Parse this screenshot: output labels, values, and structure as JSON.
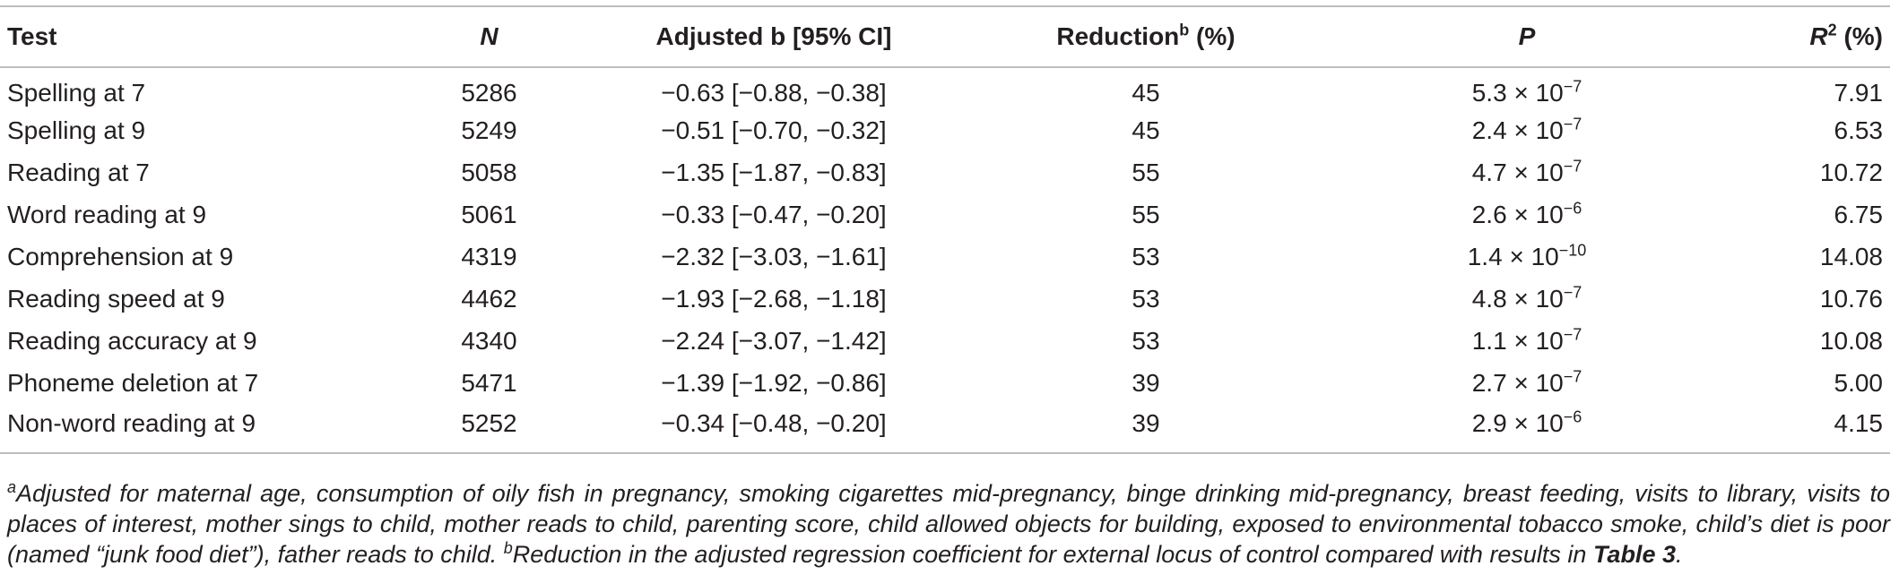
{
  "table": {
    "headers": {
      "test": "Test",
      "n": "N",
      "adjusted_b": "Adjusted b [95% CI]",
      "reduction": "Reduction",
      "reduction_sup": "b",
      "reduction_unit": " (%)",
      "p": "P",
      "r2": "R",
      "r2_sup": "2",
      "r2_unit": " (%)"
    },
    "rows": [
      {
        "test": "Spelling at 7",
        "n": "5286",
        "b": "−0.63 [−0.88, −0.38]",
        "reduction": "45",
        "p_base": "5.3 × 10",
        "p_exp": "−7",
        "r2": "7.91"
      },
      {
        "test": "Spelling at 9",
        "n": "5249",
        "b": "−0.51 [−0.70, −0.32]",
        "reduction": "45",
        "p_base": "2.4 × 10",
        "p_exp": "−7",
        "r2": "6.53"
      },
      {
        "test": "Reading at 7",
        "n": "5058",
        "b": "−1.35 [−1.87, −0.83]",
        "reduction": "55",
        "p_base": "4.7 × 10",
        "p_exp": "−7",
        "r2": "10.72"
      },
      {
        "test": "Word reading at 9",
        "n": "5061",
        "b": "−0.33 [−0.47, −0.20]",
        "reduction": "55",
        "p_base": "2.6 × 10",
        "p_exp": "−6",
        "r2": "6.75"
      },
      {
        "test": "Comprehension at 9",
        "n": "4319",
        "b": "−2.32 [−3.03, −1.61]",
        "reduction": "53",
        "p_base": "1.4 × 10",
        "p_exp": "−10",
        "r2": "14.08"
      },
      {
        "test": "Reading speed at 9",
        "n": "4462",
        "b": "−1.93 [−2.68, −1.18]",
        "reduction": "53",
        "p_base": "4.8 × 10",
        "p_exp": "−7",
        "r2": "10.76"
      },
      {
        "test": "Reading accuracy at 9",
        "n": "4340",
        "b": "−2.24 [−3.07, −1.42]",
        "reduction": "53",
        "p_base": "1.1 × 10",
        "p_exp": "−7",
        "r2": "10.08"
      },
      {
        "test": "Phoneme deletion at 7",
        "n": "5471",
        "b": "−1.39 [−1.92, −0.86]",
        "reduction": "39",
        "p_base": "2.7 × 10",
        "p_exp": "−7",
        "r2": "5.00"
      },
      {
        "test": "Non-word reading at 9",
        "n": "5252",
        "b": "−0.34 [−0.48, −0.20]",
        "reduction": "39",
        "p_base": "2.9 × 10",
        "p_exp": "−6",
        "r2": "4.15"
      }
    ]
  },
  "footnote": {
    "a_marker": "a",
    "a_text": "Adjusted for maternal age, consumption of oily fish in pregnancy, smoking cigarettes mid-pregnancy, binge drinking mid-pregnancy, breast feeding, visits to library, visits to places of interest, mother sings to child, mother reads to child, parenting score, child allowed objects for building, exposed to environmental tobacco smoke, child’s diet is poor (named “junk food diet”), father reads to child. ",
    "b_marker": "b",
    "b_text": "Reduction in the adjusted regression coefficient for external locus of control compared with results in ",
    "b_ref": "Table 3",
    "b_end": "."
  }
}
